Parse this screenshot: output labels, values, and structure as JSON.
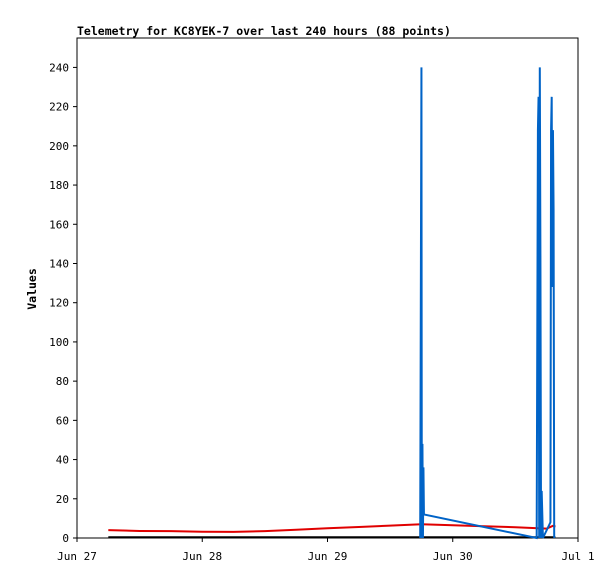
{
  "chart_data": {
    "type": "line",
    "title": "Telemetry for KC8YEK-7 over last 240 hours (88 points)",
    "xlabel": "",
    "ylabel": "Values",
    "xlim": [
      0,
      4
    ],
    "ylim": [
      0,
      255
    ],
    "x_ticks": [
      {
        "label": "Jun 27",
        "value": 0
      },
      {
        "label": "Jun 28",
        "value": 1
      },
      {
        "label": "Jun 29",
        "value": 2
      },
      {
        "label": "Jun 30",
        "value": 3
      },
      {
        "label": "Jul 1",
        "value": 4
      }
    ],
    "y_ticks": [
      0,
      20,
      40,
      60,
      80,
      100,
      120,
      140,
      160,
      180,
      200,
      220,
      240
    ],
    "grid": false,
    "colors": {
      "series_blue": "#0063c7",
      "series_red": "#e00000",
      "series_black": "#000000"
    },
    "series": [
      {
        "color": "#0063c7",
        "x": [
          2.74,
          2.745,
          2.75,
          2.753,
          2.758,
          2.762,
          2.766,
          2.77,
          3.67,
          3.675,
          3.68,
          3.685,
          3.69,
          3.695,
          3.7,
          3.705,
          3.71,
          3.72,
          3.78,
          3.785,
          3.79,
          3.795,
          3.8,
          3.805,
          3.81
        ],
        "y": [
          0,
          120,
          240,
          0,
          48,
          0,
          36,
          12,
          0,
          104,
          208,
          225,
          0,
          240,
          144,
          0,
          24,
          0,
          8,
          208,
          225,
          128,
          208,
          168,
          0
        ]
      },
      {
        "color": "#e00000",
        "x": [
          0.25,
          0.5,
          0.75,
          1.0,
          1.25,
          1.5,
          1.75,
          2.0,
          2.25,
          2.5,
          2.75,
          3.0,
          3.25,
          3.5,
          3.75,
          3.8,
          3.82
        ],
        "y": [
          4,
          3.6,
          3.5,
          3.2,
          3.1,
          3.5,
          4.2,
          5,
          5.6,
          6.3,
          7,
          6.5,
          6,
          5.5,
          4.8,
          6.2,
          5.8
        ]
      },
      {
        "color": "#000000",
        "x": [
          0.25,
          1.0,
          2.0,
          3.0,
          3.82
        ],
        "y": [
          0.4,
          0.4,
          0.4,
          0.4,
          0.4
        ]
      }
    ]
  }
}
